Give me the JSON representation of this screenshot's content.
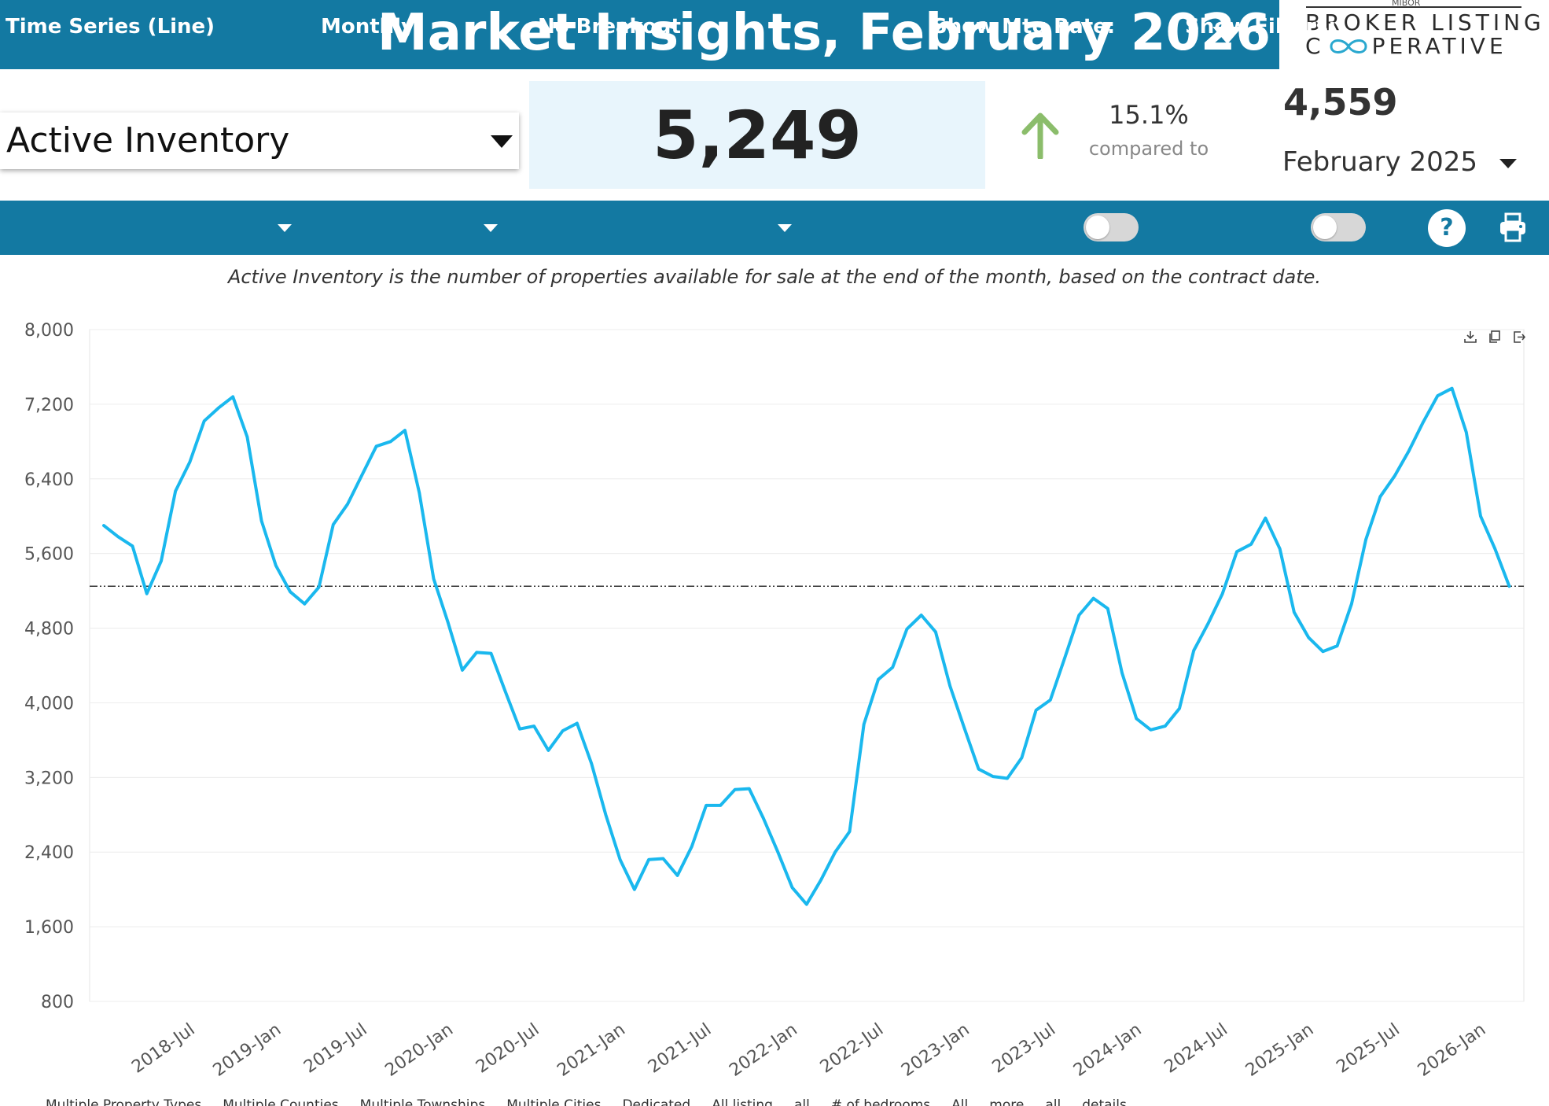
{
  "header": {
    "title": "Market Insights, February 2026",
    "logo_top": "MIBOR",
    "logo_line1": "BROKER LISTING",
    "logo_line2_start": "C",
    "logo_line2_end": "PERATIVE"
  },
  "metric": {
    "selected": "Active Inventory",
    "value": "5,249",
    "change_pct": "15.1%",
    "compared_label": "compared to",
    "previous_value": "4,559",
    "previous_period": "February 2025"
  },
  "toolbar": {
    "chart_type": "Time Series (Line)",
    "interval": "Monthly",
    "breakout": "No Breakout",
    "mtg_rate_label": "Show Mtg Rate:",
    "filters_label": "Show Filters:",
    "help_label": "?"
  },
  "description": "Active Inventory is the number of properties available for sale at the end of the month, based on the contract date.",
  "footnote": "Multiple Property Types ... Multiple Counties ... Multiple Townships ... Multiple Cities ... Dedicated ... All listing ... all ... # of bedrooms ... All ... more ... all ... details",
  "colors": {
    "brand": "#1379a2",
    "line": "#1ab8ee",
    "up_arrow": "#8bbd6b",
    "kpi_bg": "#e8f5fc"
  },
  "chart_data": {
    "type": "line",
    "xlabel": "",
    "ylabel": "",
    "ylim": [
      800,
      8000
    ],
    "yticks": [
      "800",
      "1,600",
      "2,400",
      "3,200",
      "4,000",
      "4,800",
      "5,600",
      "6,400",
      "7,200",
      "8,000"
    ],
    "ytick_values": [
      800,
      1600,
      2400,
      3200,
      4000,
      4800,
      5600,
      6400,
      7200,
      8000
    ],
    "xticks": [
      "2018-Jul",
      "2019-Jan",
      "2019-Jul",
      "2020-Jan",
      "2020-Jul",
      "2021-Jan",
      "2021-Jul",
      "2022-Jan",
      "2022-Jul",
      "2023-Jan",
      "2023-Jul",
      "2024-Jan",
      "2024-Jul",
      "2025-Jan",
      "2025-Jul",
      "2026-Jan"
    ],
    "x_start": "2018-Feb",
    "reference_line": 5249,
    "grid": true,
    "series": [
      {
        "values": [
          5900,
          5780,
          5680,
          5170,
          5520,
          6270,
          6580,
          7020,
          7160,
          7280,
          6850,
          5950,
          5470,
          5190,
          5060,
          5240,
          5910,
          6130,
          6440,
          6750,
          6800,
          6920,
          6250,
          5330,
          4860,
          4350,
          4540,
          4530,
          4120,
          3720,
          3750,
          3490,
          3700,
          3780,
          3350,
          2800,
          2320,
          2000,
          2320,
          2330,
          2150,
          2460,
          2900,
          2900,
          3070,
          3080,
          2760,
          2400,
          2020,
          1840,
          2100,
          2400,
          2620,
          3770,
          4250,
          4380,
          4790,
          4940,
          4760,
          4180,
          3730,
          3290,
          3210,
          3190,
          3410,
          3920,
          4030,
          4480,
          4940,
          5120,
          5010,
          4320,
          3830,
          3710,
          3750,
          3940,
          4560,
          4850,
          5170,
          5620,
          5700,
          5980,
          5650,
          4970,
          4700,
          4550,
          4610,
          5060,
          5750,
          6210,
          6430,
          6700,
          7010,
          7290,
          7370,
          6900,
          6000,
          5650,
          5249
        ]
      }
    ]
  }
}
